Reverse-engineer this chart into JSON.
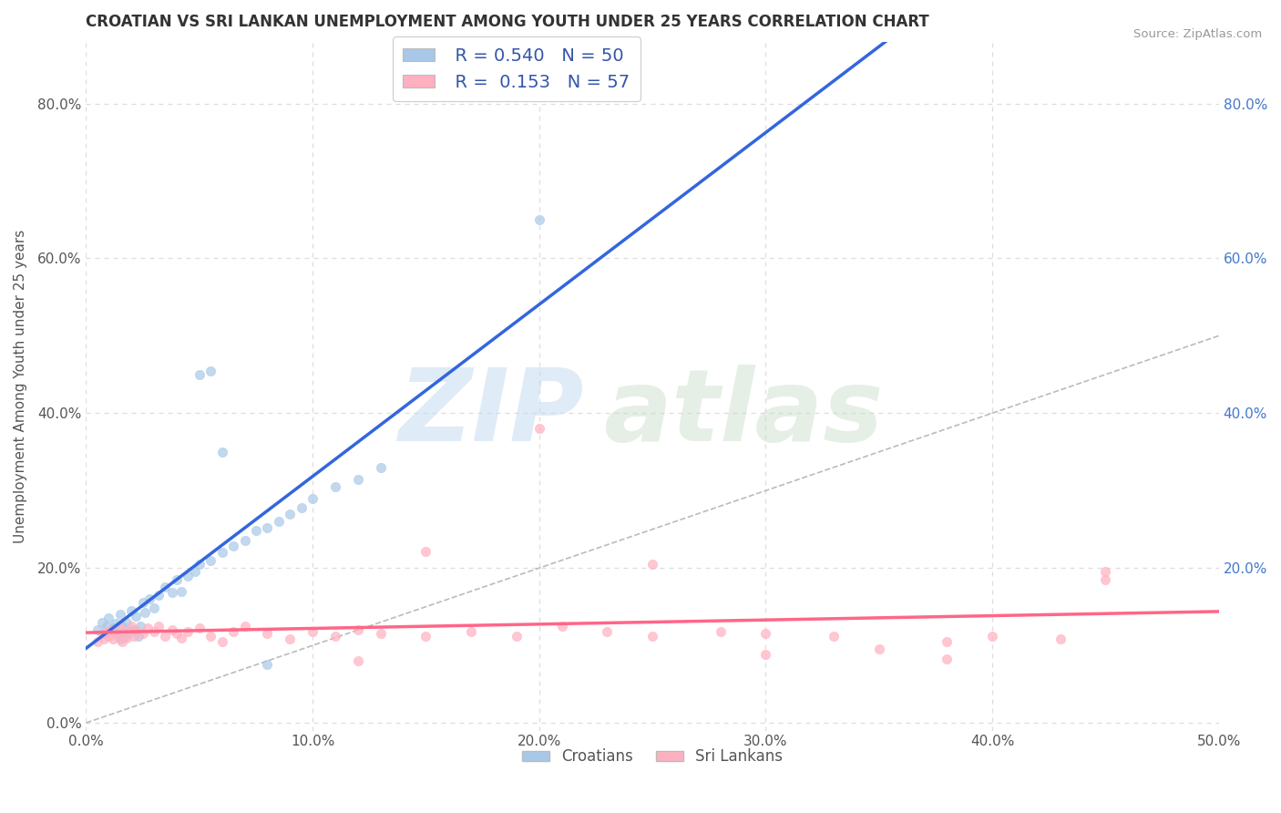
{
  "title": "CROATIAN VS SRI LANKAN UNEMPLOYMENT AMONG YOUTH UNDER 25 YEARS CORRELATION CHART",
  "source": "Source: ZipAtlas.com",
  "ylabel": "Unemployment Among Youth under 25 years",
  "xlim": [
    0.0,
    0.5
  ],
  "ylim": [
    -0.01,
    0.88
  ],
  "x_ticks": [
    0.0,
    0.1,
    0.2,
    0.3,
    0.4,
    0.5
  ],
  "x_tick_labels": [
    "0.0%",
    "10.0%",
    "20.0%",
    "30.0%",
    "40.0%",
    "50.0%"
  ],
  "y_ticks": [
    0.0,
    0.2,
    0.4,
    0.6,
    0.8
  ],
  "y_tick_labels": [
    "0.0%",
    "20.0%",
    "40.0%",
    "60.0%",
    "80.0%"
  ],
  "croatian_color": "#A8C8E8",
  "srilankan_color": "#FFB0C0",
  "trendline_croatian_color": "#3366DD",
  "trendline_srilankan_color": "#FF6688",
  "diagonal_color": "#BBBBBB",
  "legend_r_croatian": "R = 0.540",
  "legend_n_croatian": "N = 50",
  "legend_r_srilankan": "R =  0.153",
  "legend_n_srilankan": "N = 57",
  "croatian_x": [
    0.005,
    0.007,
    0.008,
    0.009,
    0.01,
    0.01,
    0.012,
    0.013,
    0.014,
    0.015,
    0.015,
    0.016,
    0.017,
    0.018,
    0.019,
    0.02,
    0.021,
    0.022,
    0.023,
    0.024,
    0.025,
    0.026,
    0.028,
    0.03,
    0.032,
    0.035,
    0.038,
    0.04,
    0.042,
    0.045,
    0.048,
    0.05,
    0.055,
    0.06,
    0.065,
    0.07,
    0.075,
    0.08,
    0.085,
    0.09,
    0.095,
    0.1,
    0.11,
    0.12,
    0.13,
    0.05,
    0.055,
    0.06,
    0.2,
    0.08
  ],
  "croatian_y": [
    0.12,
    0.13,
    0.115,
    0.125,
    0.118,
    0.135,
    0.122,
    0.128,
    0.115,
    0.14,
    0.108,
    0.125,
    0.112,
    0.13,
    0.118,
    0.145,
    0.12,
    0.138,
    0.112,
    0.125,
    0.155,
    0.142,
    0.16,
    0.148,
    0.165,
    0.175,
    0.168,
    0.185,
    0.17,
    0.19,
    0.195,
    0.205,
    0.21,
    0.22,
    0.228,
    0.235,
    0.248,
    0.252,
    0.26,
    0.27,
    0.278,
    0.29,
    0.305,
    0.315,
    0.33,
    0.45,
    0.455,
    0.35,
    0.65,
    0.075
  ],
  "srilankan_x": [
    0.005,
    0.007,
    0.008,
    0.009,
    0.01,
    0.011,
    0.012,
    0.013,
    0.014,
    0.015,
    0.016,
    0.017,
    0.018,
    0.02,
    0.021,
    0.022,
    0.025,
    0.027,
    0.03,
    0.032,
    0.035,
    0.038,
    0.04,
    0.042,
    0.045,
    0.05,
    0.055,
    0.06,
    0.065,
    0.07,
    0.08,
    0.09,
    0.1,
    0.11,
    0.12,
    0.13,
    0.15,
    0.17,
    0.19,
    0.21,
    0.23,
    0.25,
    0.28,
    0.3,
    0.33,
    0.35,
    0.38,
    0.4,
    0.43,
    0.45,
    0.2,
    0.25,
    0.3,
    0.15,
    0.12,
    0.38,
    0.45
  ],
  "srilankan_y": [
    0.105,
    0.115,
    0.108,
    0.118,
    0.112,
    0.12,
    0.108,
    0.115,
    0.112,
    0.122,
    0.105,
    0.118,
    0.11,
    0.125,
    0.112,
    0.12,
    0.115,
    0.122,
    0.118,
    0.125,
    0.112,
    0.12,
    0.115,
    0.11,
    0.118,
    0.122,
    0.112,
    0.105,
    0.118,
    0.125,
    0.115,
    0.108,
    0.118,
    0.112,
    0.12,
    0.115,
    0.112,
    0.118,
    0.112,
    0.125,
    0.118,
    0.112,
    0.118,
    0.115,
    0.112,
    0.095,
    0.105,
    0.112,
    0.108,
    0.185,
    0.38,
    0.205,
    0.088,
    0.222,
    0.08,
    0.082,
    0.195
  ],
  "background_color": "#FFFFFF",
  "grid_color": "#DDDDDD"
}
